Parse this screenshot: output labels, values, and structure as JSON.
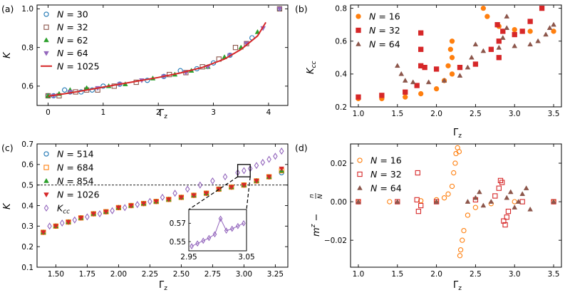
{
  "chart_data": [
    {
      "panel": "(a)",
      "type": "scatter",
      "xlabel": "Γ_z",
      "ylabel": "K",
      "xlim": [
        -0.2,
        4.35
      ],
      "ylim": [
        0.5,
        1.02
      ],
      "xticks": [
        0,
        1,
        2,
        3,
        4
      ],
      "yticks": [
        0.6,
        0.8,
        1.0
      ],
      "xtick_labels": [
        "0",
        "1",
        "2",
        "3",
        "4"
      ],
      "ytick_labels": [
        "0.6",
        "0.8",
        "1.0"
      ],
      "legend_position": "top-left",
      "series": [
        {
          "name": "N = 30",
          "marker": "circle-open",
          "color": "#1f77b4",
          "x": [
            0,
            0.1,
            0.3,
            0.4,
            0.6,
            0.8,
            1.0,
            1.3,
            1.8,
            2.1,
            2.4,
            2.7,
            3.0,
            3.3,
            3.7,
            4.2
          ],
          "y": [
            0.55,
            0.55,
            0.58,
            0.57,
            0.57,
            0.58,
            0.6,
            0.61,
            0.63,
            0.65,
            0.68,
            0.69,
            0.72,
            0.76,
            0.85,
            1.0
          ]
        },
        {
          "name": "N = 32",
          "marker": "square-open",
          "color": "#8c564b",
          "x": [
            0,
            0.2,
            0.5,
            0.7,
            0.9,
            1.2,
            1.6,
            2.2,
            2.5,
            2.8,
            3.1,
            3.4,
            3.6,
            4.2
          ],
          "y": [
            0.55,
            0.55,
            0.57,
            0.58,
            0.58,
            0.6,
            0.62,
            0.66,
            0.67,
            0.7,
            0.74,
            0.8,
            0.82,
            1.0
          ]
        },
        {
          "name": "N = 62",
          "marker": "triangle-up",
          "color": "#2ca02c",
          "x": [
            0,
            0.2,
            0.4,
            0.7,
            1.1,
            1.4,
            1.9,
            2.3,
            2.6,
            2.9,
            3.2,
            3.5,
            3.8
          ],
          "y": [
            0.55,
            0.56,
            0.58,
            0.59,
            0.6,
            0.61,
            0.64,
            0.66,
            0.68,
            0.7,
            0.75,
            0.8,
            0.88
          ]
        },
        {
          "name": "N = 64",
          "marker": "triangle-down",
          "color": "#9467bd",
          "x": [
            0.1,
            0.4,
            0.9,
            1.3,
            1.7,
            2.1,
            2.5,
            2.9,
            3.3,
            3.6,
            3.9,
            4.2
          ],
          "y": [
            0.55,
            0.57,
            0.59,
            0.61,
            0.63,
            0.65,
            0.67,
            0.7,
            0.76,
            0.82,
            0.9,
            1.0
          ]
        },
        {
          "name": "N = 1025",
          "marker": "line",
          "color": "#d62728",
          "x": [
            0,
            0.4,
            0.8,
            1.2,
            1.6,
            2.0,
            2.4,
            2.8,
            3.2,
            3.5,
            3.8,
            3.95
          ],
          "y": [
            0.548,
            0.565,
            0.585,
            0.605,
            0.625,
            0.645,
            0.668,
            0.697,
            0.74,
            0.79,
            0.86,
            0.93
          ]
        }
      ]
    },
    {
      "panel": "(b)",
      "type": "scatter",
      "xlabel": "Γ_z",
      "ylabel": "K_cc",
      "xlim": [
        0.9,
        3.6
      ],
      "ylim": [
        0.2,
        0.82
      ],
      "xticks": [
        1.0,
        1.5,
        2.0,
        2.5,
        3.0,
        3.5
      ],
      "yticks": [
        0.2,
        0.4,
        0.6,
        0.8
      ],
      "xtick_labels": [
        "1.0",
        "1.5",
        "2.0",
        "2.5",
        "3.0",
        "3.5"
      ],
      "ytick_labels": [
        "0.2",
        "0.4",
        "0.6",
        "0.8"
      ],
      "legend_position": "top-left",
      "series": [
        {
          "name": "N = 16",
          "marker": "circle",
          "color": "#ff7f0e",
          "x": [
            1.0,
            1.3,
            1.6,
            1.8,
            2.0,
            2.1,
            2.15,
            2.18,
            2.2,
            2.2,
            2.2,
            2.6,
            2.65,
            2.8,
            3.0,
            3.2,
            3.5
          ],
          "y": [
            0.25,
            0.25,
            0.26,
            0.28,
            0.31,
            0.36,
            0.45,
            0.55,
            0.6,
            0.5,
            0.4,
            0.8,
            0.75,
            0.69,
            0.67,
            0.66,
            0.66
          ]
        },
        {
          "name": "N = 32",
          "marker": "square",
          "color": "#d62728",
          "x": [
            1.0,
            1.3,
            1.6,
            1.75,
            1.8,
            1.8,
            1.8,
            1.85,
            2.0,
            2.3,
            2.5,
            2.7,
            2.78,
            2.8,
            2.8,
            2.85,
            3.0,
            3.1,
            3.2,
            3.35
          ],
          "y": [
            0.26,
            0.27,
            0.29,
            0.33,
            0.45,
            0.55,
            0.65,
            0.44,
            0.43,
            0.44,
            0.46,
            0.55,
            0.7,
            0.6,
            0.5,
            0.66,
            0.64,
            0.66,
            0.72,
            0.8
          ]
        },
        {
          "name": "N = 64",
          "marker": "triangle-up",
          "color": "#8c564b",
          "x": [
            1.5,
            1.55,
            1.6,
            1.7,
            1.9,
            2.1,
            2.3,
            2.4,
            2.45,
            2.5,
            2.6,
            2.8,
            2.85,
            2.9,
            2.9,
            3.0,
            3.2,
            3.3,
            3.4,
            3.45,
            3.5
          ],
          "y": [
            0.45,
            0.4,
            0.36,
            0.35,
            0.35,
            0.36,
            0.39,
            0.44,
            0.5,
            0.58,
            0.54,
            0.56,
            0.62,
            0.68,
            0.75,
            0.57,
            0.58,
            0.6,
            0.64,
            0.68,
            0.7
          ]
        }
      ]
    },
    {
      "panel": "(c)",
      "type": "scatter",
      "xlabel": "Γ_z",
      "ylabel": "K",
      "xlim": [
        1.35,
        3.35
      ],
      "ylim": [
        0.1,
        0.7
      ],
      "xticks": [
        1.5,
        1.75,
        2.0,
        2.25,
        2.5,
        2.75,
        3.0,
        3.25
      ],
      "yticks": [
        0.1,
        0.2,
        0.3,
        0.4,
        0.5,
        0.6,
        0.7
      ],
      "xtick_labels": [
        "1.50",
        "1.75",
        "2.00",
        "2.25",
        "2.50",
        "2.75",
        "3.00",
        "3.25"
      ],
      "ytick_labels": [
        "0.1",
        "0.2",
        "0.3",
        "0.4",
        "0.5",
        "0.6",
        "0.7"
      ],
      "hline": 0.5,
      "legend_position": "top-left",
      "series": [
        {
          "name": "N = 514",
          "marker": "circle-open",
          "color": "#1f77b4",
          "x": [
            1.4,
            1.5,
            1.6,
            1.7,
            1.8,
            1.9,
            2.0,
            2.1,
            2.2,
            2.3,
            2.4,
            2.5,
            2.6,
            2.7,
            2.8,
            2.9,
            3.0,
            3.1,
            3.2,
            3.3
          ],
          "y": [
            0.27,
            0.3,
            0.32,
            0.34,
            0.36,
            0.37,
            0.39,
            0.4,
            0.41,
            0.42,
            0.43,
            0.44,
            0.45,
            0.46,
            0.48,
            0.49,
            0.5,
            0.52,
            0.54,
            0.56
          ]
        },
        {
          "name": "N = 684",
          "marker": "square-open",
          "color": "#ff7f0e",
          "x": [
            1.4,
            1.5,
            1.6,
            1.7,
            1.8,
            1.9,
            2.0,
            2.1,
            2.2,
            2.3,
            2.4,
            2.5,
            2.6,
            2.7,
            2.8,
            2.9,
            3.0,
            3.1,
            3.2,
            3.3
          ],
          "y": [
            0.27,
            0.3,
            0.32,
            0.34,
            0.36,
            0.37,
            0.39,
            0.4,
            0.41,
            0.42,
            0.43,
            0.44,
            0.45,
            0.46,
            0.48,
            0.49,
            0.5,
            0.52,
            0.54,
            0.57
          ]
        },
        {
          "name": "N = 854",
          "marker": "triangle-up",
          "color": "#2ca02c",
          "x": [
            1.4,
            1.5,
            1.6,
            1.7,
            1.8,
            1.9,
            2.0,
            2.1,
            2.2,
            2.3,
            2.4,
            2.5,
            2.6,
            2.7,
            2.8,
            2.9,
            3.0,
            3.1,
            3.2,
            3.3
          ],
          "y": [
            0.27,
            0.3,
            0.32,
            0.34,
            0.36,
            0.37,
            0.39,
            0.4,
            0.41,
            0.42,
            0.43,
            0.44,
            0.45,
            0.46,
            0.48,
            0.49,
            0.5,
            0.52,
            0.54,
            0.57
          ]
        },
        {
          "name": "N = 1026",
          "marker": "triangle-down",
          "color": "#d62728",
          "x": [
            1.4,
            1.5,
            1.6,
            1.7,
            1.8,
            1.9,
            2.0,
            2.1,
            2.2,
            2.3,
            2.4,
            2.5,
            2.6,
            2.7,
            2.8,
            2.9,
            3.0,
            3.1,
            3.2,
            3.3
          ],
          "y": [
            0.27,
            0.3,
            0.32,
            0.34,
            0.36,
            0.37,
            0.39,
            0.4,
            0.41,
            0.42,
            0.43,
            0.44,
            0.45,
            0.46,
            0.48,
            0.49,
            0.5,
            0.52,
            0.54,
            0.58
          ]
        },
        {
          "name": "K_cc",
          "marker": "diamond-open",
          "color": "#9467bd",
          "x": [
            1.45,
            1.55,
            1.65,
            1.75,
            1.85,
            1.95,
            2.05,
            2.15,
            2.25,
            2.35,
            2.45,
            2.55,
            2.65,
            2.75,
            2.85,
            2.95,
            3.0,
            3.05,
            3.1,
            3.15,
            3.2,
            3.25,
            3.3
          ],
          "y": [
            0.3,
            0.315,
            0.33,
            0.345,
            0.36,
            0.375,
            0.39,
            0.405,
            0.42,
            0.44,
            0.46,
            0.48,
            0.5,
            0.52,
            0.54,
            0.56,
            0.57,
            0.58,
            0.595,
            0.61,
            0.625,
            0.64,
            0.665
          ]
        }
      ],
      "inset": {
        "xlim": [
          2.95,
          3.05
        ],
        "ylim": [
          0.54,
          0.585
        ],
        "xticks": [
          2.95,
          3.05
        ],
        "yticks": [
          0.55,
          0.57
        ],
        "xtick_labels": [
          "2.95",
          "3.05"
        ],
        "ytick_labels": [
          "0.55",
          "0.57"
        ],
        "x": [
          2.955,
          2.965,
          2.975,
          2.985,
          2.995,
          3.005,
          3.015,
          3.025,
          3.035,
          3.045
        ],
        "y": [
          0.545,
          0.548,
          0.551,
          0.554,
          0.558,
          0.575,
          0.562,
          0.564,
          0.567,
          0.57
        ]
      }
    },
    {
      "panel": "(d)",
      "type": "scatter",
      "xlabel": "Γ_z",
      "ylabel": "m^z − n/N",
      "xlim": [
        0.9,
        3.6
      ],
      "ylim": [
        -0.034,
        0.03
      ],
      "xticks": [
        1.0,
        1.5,
        2.0,
        2.5,
        3.0,
        3.5
      ],
      "yticks": [
        -0.02,
        0.0,
        0.02
      ],
      "xtick_labels": [
        "1.0",
        "1.5",
        "2.0",
        "2.5",
        "3.0",
        "3.5"
      ],
      "ytick_labels": [
        "−0.02",
        "0.00",
        "0.02"
      ],
      "legend_position": "top-left",
      "series": [
        {
          "name": "N = 16",
          "marker": "circle-open",
          "color": "#ff7f0e",
          "x": [
            1.0,
            1.4,
            1.8,
            2.0,
            2.1,
            2.15,
            2.2,
            2.22,
            2.24,
            2.25,
            2.27,
            2.29,
            2.3,
            2.31,
            2.33,
            2.35,
            2.4,
            2.5,
            2.7,
            3.0,
            3.5
          ],
          "y": [
            0.0,
            0.0,
            0.0005,
            0.001,
            0.002,
            0.004,
            0.008,
            0.015,
            0.02,
            0.025,
            0.028,
            0.026,
            -0.028,
            -0.025,
            -0.02,
            -0.015,
            -0.007,
            -0.003,
            -0.001,
            0.0,
            0.0
          ]
        },
        {
          "name": "N = 32",
          "marker": "square-open",
          "color": "#d62728",
          "x": [
            1.0,
            1.5,
            1.75,
            1.76,
            1.77,
            1.8,
            2.0,
            2.5,
            2.75,
            2.8,
            2.82,
            2.84,
            2.86,
            2.88,
            2.9,
            2.92,
            3.1,
            3.5
          ],
          "y": [
            0.0,
            0.0,
            0.001,
            0.015,
            -0.005,
            -0.002,
            0.0,
            0.001,
            0.003,
            0.007,
            0.011,
            0.01,
            -0.01,
            -0.012,
            -0.008,
            -0.005,
            0.0,
            0.0
          ]
        },
        {
          "name": "N = 64",
          "marker": "triangle-up",
          "color": "#8c564b",
          "x": [
            1.0,
            1.5,
            2.0,
            2.4,
            2.5,
            2.55,
            2.6,
            2.7,
            2.9,
            2.95,
            3.0,
            3.05,
            3.1,
            3.15,
            3.2,
            3.5
          ],
          "y": [
            0.0,
            0.0,
            0.0,
            0.0,
            0.002,
            0.005,
            -0.002,
            0.0,
            0.002,
            0.005,
            -0.003,
            0.0,
            0.004,
            0.007,
            -0.004,
            0.0
          ]
        }
      ]
    }
  ],
  "panel_labels": [
    "(a)",
    "(b)",
    "(c)",
    "(d)"
  ],
  "axis_text": {
    "gamma": "Γ",
    "z": "z",
    "K": "K",
    "cc": "cc",
    "m": "m",
    "n": "n",
    "N": "N"
  }
}
